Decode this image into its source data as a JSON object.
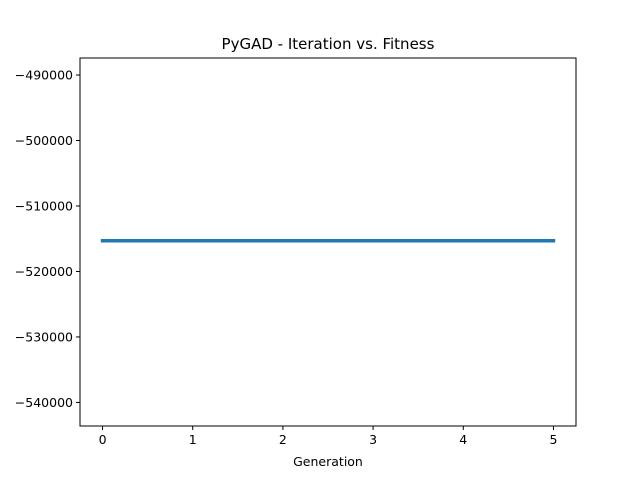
{
  "chart_data": {
    "type": "line",
    "title": "PyGAD - Iteration vs. Fitness",
    "xlabel": "Generation",
    "ylabel": "",
    "x": [
      0,
      1,
      2,
      3,
      4,
      5
    ],
    "series": [
      {
        "values": [
          -515300,
          -515300,
          -515300,
          -515300,
          -515300,
          -515300
        ]
      }
    ],
    "xlim": [
      -0.25,
      5.25
    ],
    "ylim": [
      -543600,
      -487400
    ],
    "xticks": [
      0,
      1,
      2,
      3,
      4,
      5
    ],
    "xtick_labels": [
      "0",
      "1",
      "2",
      "3",
      "4",
      "5"
    ],
    "yticks": [
      -490000,
      -500000,
      -510000,
      -520000,
      -530000,
      -540000
    ],
    "ytick_labels": [
      "−490000",
      "−500000",
      "−510000",
      "−520000",
      "−530000",
      "−540000"
    ],
    "grid": false,
    "line_color": "#1f77b4"
  }
}
